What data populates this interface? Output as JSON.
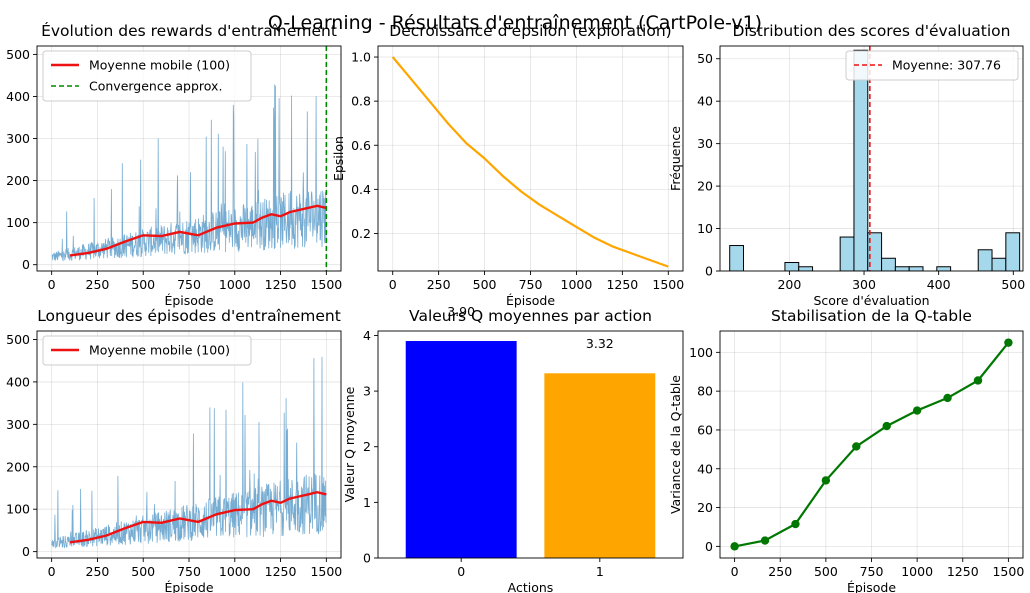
{
  "figure": {
    "suptitle": "Q-Learning - Résultats d'entraînement (CartPole-v1)"
  },
  "colors": {
    "raw": "#6fa8d0",
    "ma": "#ee1111",
    "conv": "#008800",
    "epsilon": "#ffa500",
    "hist": "#a6d8ec",
    "mean_line": "#ee1111",
    "bar0": "#0000ff",
    "bar1": "#ffa500",
    "stab": "#007700"
  },
  "chart_data": [
    {
      "id": "rewards",
      "type": "line",
      "title": "Évolution des rewards d'entraînement",
      "xlabel": "Épisode",
      "ylabel": "",
      "xlim": [
        -80,
        1580
      ],
      "ylim": [
        -15,
        520
      ],
      "xticks": [
        0,
        250,
        500,
        750,
        1000,
        1250,
        1500
      ],
      "yticks": [
        0,
        100,
        200,
        300,
        400,
        500
      ],
      "grid": true,
      "legend": {
        "position": "top-left",
        "entries": [
          "Moyenne mobile (100)",
          "Convergence approx."
        ]
      },
      "series": [
        {
          "name": "Moyenne mobile (100)",
          "x": [
            100,
            200,
            300,
            400,
            500,
            600,
            700,
            800,
            900,
            1000,
            1100,
            1150,
            1200,
            1250,
            1300,
            1350,
            1400,
            1450,
            1500
          ],
          "y": [
            22,
            28,
            38,
            55,
            70,
            68,
            78,
            70,
            88,
            98,
            100,
            112,
            120,
            115,
            125,
            130,
            135,
            140,
            135
          ]
        }
      ],
      "raw": {
        "episodes": 1500,
        "base_start": 18,
        "base_end": 120,
        "max": 500
      },
      "vline": {
        "x": 1500,
        "label": "Convergence approx."
      }
    },
    {
      "id": "epsilon",
      "type": "line",
      "title": "Décroissance d'epsilon (exploration)",
      "xlabel": "Épisode",
      "ylabel": "Epsilon",
      "xlim": [
        -80,
        1580
      ],
      "ylim": [
        0.03,
        1.05
      ],
      "xticks": [
        0,
        250,
        500,
        750,
        1000,
        1250,
        1500
      ],
      "yticks": [
        0.2,
        0.4,
        0.6,
        0.8,
        1.0
      ],
      "grid": true,
      "series": [
        {
          "name": "",
          "x": [
            0,
            100,
            200,
            300,
            400,
            500,
            600,
            700,
            800,
            900,
            1000,
            1100,
            1200,
            1300,
            1400,
            1500
          ],
          "y": [
            1.0,
            0.9,
            0.8,
            0.7,
            0.61,
            0.54,
            0.46,
            0.39,
            0.33,
            0.28,
            0.23,
            0.18,
            0.14,
            0.11,
            0.08,
            0.05
          ]
        }
      ]
    },
    {
      "id": "distribution",
      "type": "bar",
      "title": "Distribution des scores d'évaluation",
      "xlabel": "Score d'évaluation",
      "ylabel": "Fréquence",
      "xlim": [
        107,
        513
      ],
      "ylim": [
        0,
        53
      ],
      "xticks": [
        200,
        300,
        400,
        500
      ],
      "yticks": [
        0,
        10,
        20,
        30,
        40,
        50
      ],
      "grid": true,
      "legend": {
        "position": "top-right",
        "entries": [
          "Moyenne: 307.76"
        ]
      },
      "bin_width": 18.5,
      "bins": [
        {
          "x": 120,
          "count": 6
        },
        {
          "x": 138.5,
          "count": 0
        },
        {
          "x": 157,
          "count": 0
        },
        {
          "x": 175.5,
          "count": 0
        },
        {
          "x": 194,
          "count": 2
        },
        {
          "x": 212.5,
          "count": 1
        },
        {
          "x": 231,
          "count": 0
        },
        {
          "x": 249.5,
          "count": 0
        },
        {
          "x": 268,
          "count": 8
        },
        {
          "x": 286.5,
          "count": 52
        },
        {
          "x": 305,
          "count": 9
        },
        {
          "x": 323.5,
          "count": 3
        },
        {
          "x": 342,
          "count": 1
        },
        {
          "x": 360.5,
          "count": 1
        },
        {
          "x": 379,
          "count": 0
        },
        {
          "x": 397.5,
          "count": 1
        },
        {
          "x": 416,
          "count": 0
        },
        {
          "x": 434.5,
          "count": 0
        },
        {
          "x": 453,
          "count": 5
        },
        {
          "x": 471.5,
          "count": 3
        },
        {
          "x": 490,
          "count": 9
        }
      ],
      "mean": 307.76,
      "mean_label": "Moyenne: 307.76"
    },
    {
      "id": "lengths",
      "type": "line",
      "title": "Longueur des épisodes d'entraînement",
      "xlabel": "Épisode",
      "ylabel": "",
      "xlim": [
        -80,
        1580
      ],
      "ylim": [
        -15,
        520
      ],
      "xticks": [
        0,
        250,
        500,
        750,
        1000,
        1250,
        1500
      ],
      "yticks": [
        0,
        100,
        200,
        300,
        400,
        500
      ],
      "grid": true,
      "legend": {
        "position": "top-left",
        "entries": [
          "Moyenne mobile (100)"
        ]
      },
      "series": [
        {
          "name": "Moyenne mobile (100)",
          "x": [
            100,
            200,
            300,
            400,
            500,
            600,
            700,
            800,
            900,
            1000,
            1100,
            1150,
            1200,
            1250,
            1300,
            1350,
            1400,
            1450,
            1500
          ],
          "y": [
            22,
            28,
            38,
            55,
            70,
            68,
            78,
            70,
            88,
            98,
            100,
            112,
            120,
            115,
            125,
            130,
            135,
            140,
            135
          ]
        }
      ],
      "raw": {
        "episodes": 1500,
        "base_start": 18,
        "base_end": 120,
        "max": 500
      }
    },
    {
      "id": "qvalues",
      "type": "bar",
      "title": "Valeurs Q moyennes par action",
      "xlabel": "Actions",
      "ylabel": "Valeur Q moyenne",
      "xlim": [
        -0.6,
        1.6
      ],
      "ylim": [
        0,
        4.08
      ],
      "categories": [
        "0",
        "1"
      ],
      "values": [
        3.9,
        3.32
      ],
      "value_labels": [
        "3.90",
        "3.32"
      ],
      "yticks": [
        0,
        1,
        2,
        3,
        4
      ],
      "grid": false
    },
    {
      "id": "stabilisation",
      "type": "line",
      "title": "Stabilisation de la Q-table",
      "xlabel": "Épisode",
      "ylabel": "Variance de la Q-table",
      "xlim": [
        -80,
        1580
      ],
      "ylim": [
        -6,
        111
      ],
      "xticks": [
        0,
        250,
        500,
        750,
        1000,
        1250,
        1500
      ],
      "yticks": [
        0,
        20,
        40,
        60,
        80,
        100
      ],
      "grid": true,
      "series": [
        {
          "name": "",
          "x": [
            0,
            166.7,
            333.3,
            500,
            666.7,
            833.3,
            1000,
            1166.7,
            1333.3,
            1500
          ],
          "y": [
            0,
            3,
            11.5,
            34,
            51.5,
            62,
            70,
            76.5,
            85.5,
            105
          ]
        }
      ]
    }
  ]
}
